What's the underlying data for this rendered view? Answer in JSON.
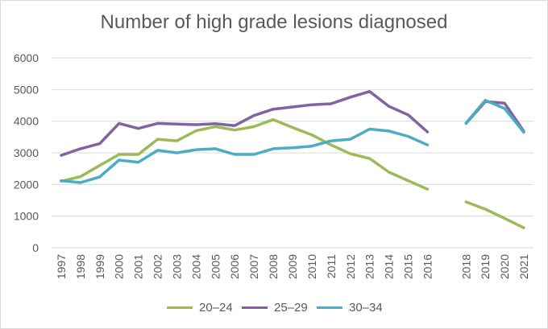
{
  "chart_data": {
    "type": "line",
    "title": "Number of high grade lesions diagnosed",
    "xlabel": "",
    "ylabel": "",
    "ylim": [
      0,
      6000
    ],
    "yticks": [
      0,
      1000,
      2000,
      3000,
      4000,
      5000,
      6000
    ],
    "grid": true,
    "legend_position": "bottom",
    "categories": [
      "1997",
      "1998",
      "1999",
      "2000",
      "2001",
      "2002",
      "2003",
      "2004",
      "2005",
      "2006",
      "2007",
      "2008",
      "2009",
      "2010",
      "2011",
      "2012",
      "2013",
      "2014",
      "2015",
      "2016",
      "",
      "2018",
      "2019",
      "2020",
      "2021"
    ],
    "series": [
      {
        "name": "20–24",
        "color": "#9bbb59",
        "values": [
          2100,
          2250,
          2600,
          2950,
          2950,
          3430,
          3380,
          3700,
          3830,
          3720,
          3830,
          4050,
          3800,
          3570,
          3250,
          2970,
          2820,
          2390,
          2120,
          1850,
          null,
          1450,
          1220,
          930,
          630
        ]
      },
      {
        "name": "25–29",
        "color": "#8064a2",
        "values": [
          2920,
          3130,
          3290,
          3930,
          3770,
          3930,
          3910,
          3890,
          3920,
          3860,
          4180,
          4380,
          4450,
          4520,
          4550,
          4760,
          4940,
          4470,
          4200,
          3660,
          null,
          3930,
          4620,
          4570,
          3680
        ]
      },
      {
        "name": "30–34",
        "color": "#4bacc6",
        "values": [
          2120,
          2060,
          2240,
          2770,
          2700,
          3080,
          3000,
          3100,
          3130,
          2950,
          2950,
          3130,
          3160,
          3210,
          3380,
          3430,
          3750,
          3690,
          3520,
          3250,
          null,
          3940,
          4660,
          4400,
          3650
        ]
      }
    ]
  }
}
